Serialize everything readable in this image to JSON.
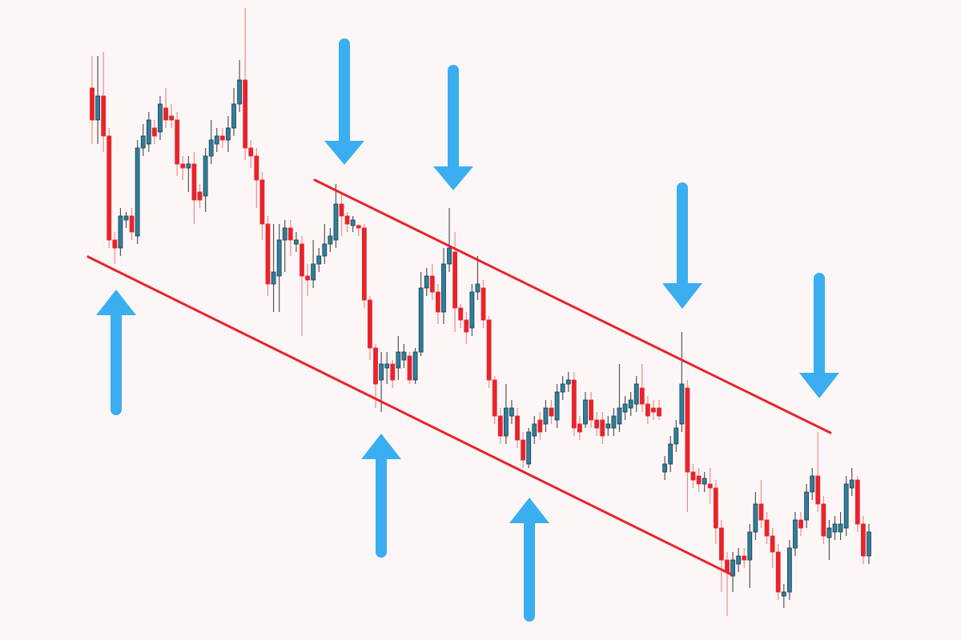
{
  "chart_data": {
    "type": "candlestick",
    "up_color": "#2d7f9d",
    "down_color": "#e8232a",
    "up_wick_color": "#555555",
    "down_wick_color": "#f08a8c",
    "ylim": [
      0,
      800
    ],
    "ohlc": [
      [
        690,
        730,
        620,
        650
      ],
      [
        650,
        730,
        620,
        680
      ],
      [
        680,
        735,
        610,
        630
      ],
      [
        630,
        640,
        490,
        500
      ],
      [
        500,
        510,
        470,
        490
      ],
      [
        490,
        540,
        480,
        530
      ],
      [
        525,
        535,
        515,
        530
      ],
      [
        530,
        540,
        500,
        510
      ],
      [
        505,
        625,
        495,
        615
      ],
      [
        615,
        645,
        605,
        630
      ],
      [
        620,
        660,
        610,
        650
      ],
      [
        640,
        650,
        620,
        630
      ],
      [
        635,
        680,
        625,
        670
      ],
      [
        665,
        690,
        640,
        650
      ],
      [
        655,
        670,
        640,
        650
      ],
      [
        650,
        660,
        580,
        595
      ],
      [
        595,
        605,
        575,
        590
      ],
      [
        590,
        605,
        560,
        595
      ],
      [
        595,
        610,
        520,
        550
      ],
      [
        560,
        570,
        540,
        550
      ],
      [
        555,
        615,
        535,
        605
      ],
      [
        605,
        650,
        595,
        625
      ],
      [
        620,
        640,
        610,
        630
      ],
      [
        630,
        640,
        615,
        625
      ],
      [
        625,
        655,
        610,
        640
      ],
      [
        640,
        690,
        630,
        670
      ],
      [
        670,
        725,
        660,
        700
      ],
      [
        700,
        790,
        600,
        615
      ],
      [
        615,
        625,
        590,
        605
      ],
      [
        605,
        615,
        540,
        575
      ],
      [
        575,
        585,
        500,
        520
      ],
      [
        520,
        530,
        430,
        445
      ],
      [
        445,
        520,
        410,
        460
      ],
      [
        455,
        520,
        410,
        500
      ],
      [
        500,
        525,
        460,
        515
      ],
      [
        515,
        525,
        480,
        500
      ],
      [
        495,
        510,
        485,
        500
      ],
      [
        495,
        505,
        380,
        455
      ],
      [
        455,
        470,
        430,
        450
      ],
      [
        450,
        500,
        440,
        470
      ],
      [
        470,
        490,
        460,
        480
      ],
      [
        480,
        520,
        470,
        495
      ],
      [
        495,
        515,
        485,
        505
      ],
      [
        500,
        570,
        490,
        545
      ],
      [
        545,
        560,
        505,
        530
      ],
      [
        530,
        535,
        510,
        520
      ],
      [
        518,
        530,
        510,
        525
      ],
      [
        518,
        520,
        505,
        515
      ],
      [
        515,
        520,
        415,
        425
      ],
      [
        425,
        430,
        350,
        365
      ],
      [
        365,
        370,
        290,
        320
      ],
      [
        325,
        360,
        285,
        345
      ],
      [
        340,
        360,
        320,
        345
      ],
      [
        345,
        350,
        315,
        325
      ],
      [
        340,
        380,
        325,
        360
      ],
      [
        350,
        370,
        340,
        360
      ],
      [
        355,
        360,
        320,
        325
      ],
      [
        325,
        365,
        320,
        360
      ],
      [
        360,
        460,
        355,
        440
      ],
      [
        440,
        465,
        430,
        455
      ],
      [
        455,
        470,
        425,
        435
      ],
      [
        435,
        445,
        395,
        410
      ],
      [
        410,
        490,
        395,
        470
      ],
      [
        470,
        540,
        460,
        490
      ],
      [
        485,
        510,
        385,
        415
      ],
      [
        415,
        420,
        390,
        400
      ],
      [
        400,
        410,
        370,
        385
      ],
      [
        390,
        445,
        380,
        435
      ],
      [
        435,
        480,
        425,
        445
      ],
      [
        440,
        450,
        390,
        400
      ],
      [
        400,
        405,
        315,
        325
      ],
      [
        325,
        330,
        270,
        280
      ],
      [
        280,
        290,
        245,
        255
      ],
      [
        255,
        320,
        245,
        290
      ],
      [
        280,
        300,
        270,
        290
      ],
      [
        280,
        290,
        240,
        250
      ],
      [
        250,
        260,
        215,
        225
      ],
      [
        220,
        265,
        215,
        260
      ],
      [
        255,
        280,
        245,
        270
      ],
      [
        275,
        285,
        250,
        260
      ],
      [
        270,
        300,
        260,
        290
      ],
      [
        290,
        300,
        270,
        280
      ],
      [
        275,
        320,
        265,
        310
      ],
      [
        310,
        330,
        300,
        320
      ],
      [
        320,
        335,
        310,
        325
      ],
      [
        325,
        335,
        255,
        265
      ],
      [
        270,
        280,
        250,
        260
      ],
      [
        270,
        310,
        265,
        300
      ],
      [
        300,
        310,
        265,
        275
      ],
      [
        275,
        285,
        255,
        265
      ],
      [
        275,
        285,
        245,
        255
      ],
      [
        265,
        280,
        255,
        270
      ],
      [
        265,
        290,
        255,
        280
      ],
      [
        270,
        345,
        260,
        290
      ],
      [
        285,
        305,
        275,
        295
      ],
      [
        290,
        310,
        280,
        300
      ],
      [
        295,
        330,
        285,
        320
      ],
      [
        315,
        345,
        285,
        295
      ],
      [
        295,
        305,
        270,
        280
      ],
      [
        290,
        300,
        275,
        285
      ],
      [
        290,
        300,
        275,
        280
      ],
      [
        210,
        230,
        200,
        220
      ],
      [
        220,
        255,
        210,
        245
      ],
      [
        245,
        275,
        235,
        265
      ],
      [
        270,
        385,
        260,
        320
      ],
      [
        315,
        325,
        160,
        210
      ],
      [
        210,
        220,
        190,
        200
      ],
      [
        205,
        215,
        185,
        195
      ],
      [
        195,
        210,
        185,
        202
      ],
      [
        195,
        215,
        170,
        190
      ],
      [
        190,
        200,
        120,
        140
      ],
      [
        140,
        150,
        60,
        100
      ],
      [
        100,
        110,
        30,
        85
      ],
      [
        80,
        110,
        60,
        100
      ],
      [
        95,
        115,
        85,
        105
      ],
      [
        105,
        115,
        90,
        100
      ],
      [
        100,
        145,
        65,
        135
      ],
      [
        135,
        185,
        125,
        170
      ],
      [
        170,
        200,
        140,
        150
      ],
      [
        150,
        160,
        120,
        130
      ],
      [
        130,
        140,
        90,
        110
      ],
      [
        110,
        120,
        50,
        60
      ],
      [
        55,
        70,
        40,
        60
      ],
      [
        60,
        125,
        50,
        115
      ],
      [
        115,
        160,
        105,
        150
      ],
      [
        150,
        160,
        130,
        140
      ],
      [
        150,
        195,
        140,
        185
      ],
      [
        185,
        215,
        175,
        205
      ],
      [
        205,
        260,
        160,
        170
      ],
      [
        170,
        180,
        120,
        130
      ],
      [
        128,
        150,
        100,
        140
      ],
      [
        135,
        155,
        125,
        145
      ],
      [
        135,
        160,
        125,
        145
      ],
      [
        140,
        205,
        130,
        195
      ],
      [
        190,
        215,
        180,
        200
      ],
      [
        200,
        205,
        135,
        145
      ],
      [
        145,
        155,
        95,
        105
      ],
      [
        105,
        145,
        95,
        135
      ]
    ]
  }
}
